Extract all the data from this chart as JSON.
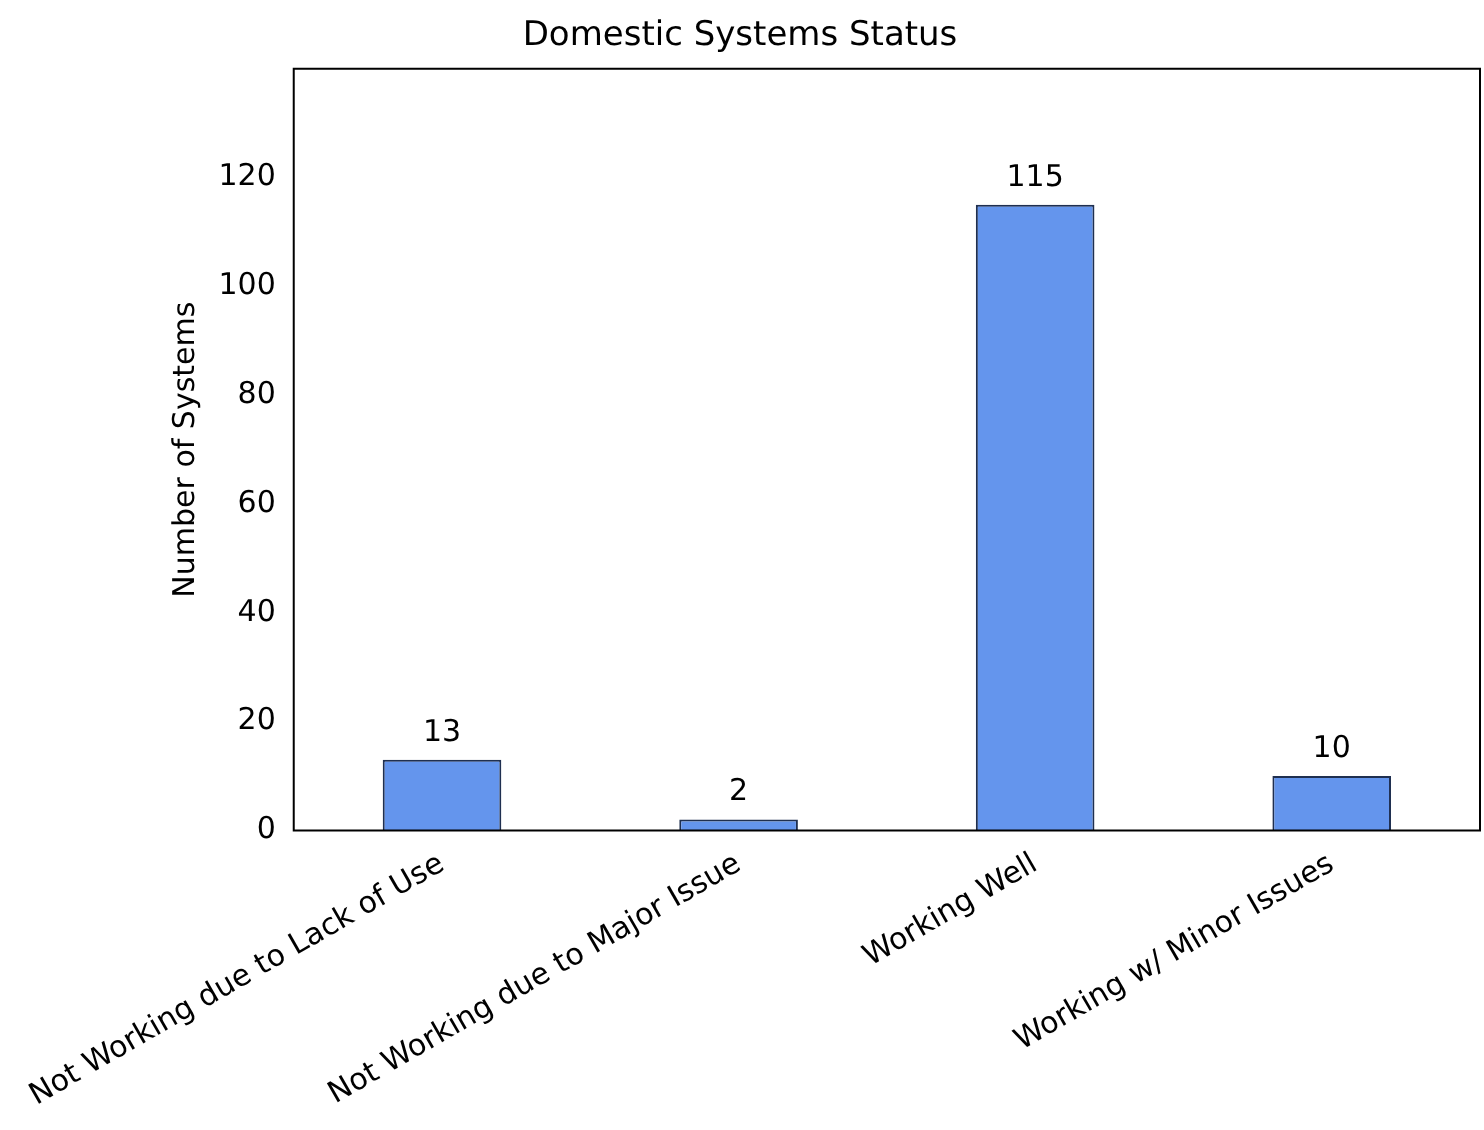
{
  "chart_data": {
    "type": "bar",
    "title": "Domestic Systems Status",
    "ylabel": "Number of Systems",
    "categories": [
      "Not Working due to Lack of Use",
      "Not Working due to Major Issue",
      "Working Well",
      "Working w/ Minor Issues"
    ],
    "values": [
      13,
      2,
      115,
      10
    ],
    "color": "#6495ed",
    "ylim": [
      0,
      140
    ],
    "yticks": [
      0,
      20,
      40,
      60,
      80,
      100,
      120
    ],
    "grid": false,
    "data_labels": true
  }
}
